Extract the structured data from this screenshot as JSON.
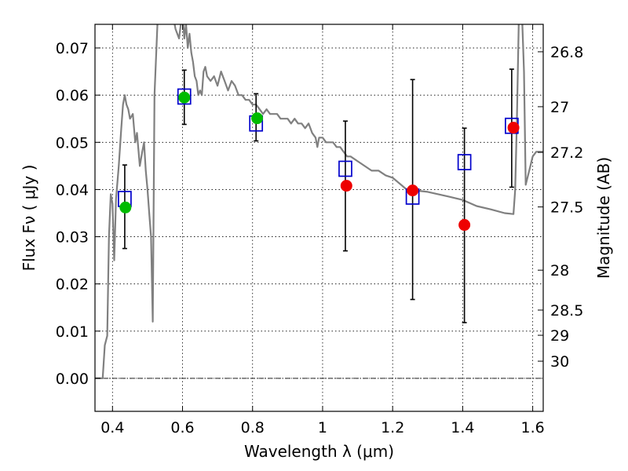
{
  "chart_data": {
    "type": "scatter",
    "xlabel": "Wavelength  λ (μm)",
    "ylabel": "Flux  Fν  ( μJy )",
    "y2label": "Magnitude (AB)",
    "xlim": [
      0.35,
      1.63
    ],
    "ylim": [
      -0.007,
      0.075
    ],
    "grid": true,
    "x_ticks": [
      {
        "value": 0.4,
        "label": "0.4"
      },
      {
        "value": 0.6,
        "label": "0.6"
      },
      {
        "value": 0.8,
        "label": "0.8"
      },
      {
        "value": 1.0,
        "label": "1"
      },
      {
        "value": 1.2,
        "label": "1.2"
      },
      {
        "value": 1.4,
        "label": "1.4"
      },
      {
        "value": 1.6,
        "label": "1.6"
      }
    ],
    "y_ticks": [
      {
        "value": 0.0,
        "label": "0.00"
      },
      {
        "value": 0.01,
        "label": "0.01"
      },
      {
        "value": 0.02,
        "label": "0.02"
      },
      {
        "value": 0.03,
        "label": "0.03"
      },
      {
        "value": 0.04,
        "label": "0.04"
      },
      {
        "value": 0.05,
        "label": "0.05"
      },
      {
        "value": 0.06,
        "label": "0.06"
      },
      {
        "value": 0.07,
        "label": "0.07"
      }
    ],
    "y2_ticks": [
      {
        "value": 26.8,
        "label": "26.8"
      },
      {
        "value": 27.0,
        "label": "27"
      },
      {
        "value": 27.2,
        "label": "27.2"
      },
      {
        "value": 27.5,
        "label": "27.5"
      },
      {
        "value": 28.0,
        "label": "28"
      },
      {
        "value": 28.5,
        "label": "28.5"
      },
      {
        "value": 29.0,
        "label": "29"
      },
      {
        "value": 30.0,
        "label": "30"
      }
    ],
    "zero_line": 0.0,
    "series": [
      {
        "kind": "line",
        "color": "#808080",
        "x": [
          0.35,
          0.372,
          0.378,
          0.385,
          0.39,
          0.395,
          0.4,
          0.405,
          0.41,
          0.418,
          0.425,
          0.43,
          0.435,
          0.44,
          0.445,
          0.45,
          0.458,
          0.465,
          0.47,
          0.478,
          0.485,
          0.49,
          0.495,
          0.5,
          0.505,
          0.51,
          0.515,
          0.52,
          0.53,
          0.55,
          0.575,
          0.58,
          0.59,
          0.6,
          0.605,
          0.61,
          0.615,
          0.62,
          0.625,
          0.63,
          0.635,
          0.64,
          0.645,
          0.65,
          0.655,
          0.66,
          0.665,
          0.67,
          0.68,
          0.69,
          0.7,
          0.71,
          0.72,
          0.73,
          0.74,
          0.75,
          0.76,
          0.77,
          0.78,
          0.79,
          0.8,
          0.81,
          0.82,
          0.83,
          0.84,
          0.85,
          0.86,
          0.87,
          0.88,
          0.89,
          0.9,
          0.91,
          0.92,
          0.93,
          0.94,
          0.95,
          0.96,
          0.97,
          0.98,
          0.985,
          0.99,
          1.0,
          1.01,
          1.02,
          1.03,
          1.04,
          1.05,
          1.06,
          1.07,
          1.08,
          1.1,
          1.12,
          1.14,
          1.16,
          1.18,
          1.2,
          1.24,
          1.3,
          1.36,
          1.4,
          1.44,
          1.48,
          1.52,
          1.545,
          1.55,
          1.555,
          1.56,
          1.565,
          1.57,
          1.575,
          1.58,
          1.59,
          1.6,
          1.61,
          1.62,
          1.63
        ],
        "y": [
          0.0,
          0.0,
          0.007,
          0.009,
          0.03,
          0.039,
          0.037,
          0.025,
          0.038,
          0.045,
          0.053,
          0.058,
          0.06,
          0.058,
          0.057,
          0.055,
          0.056,
          0.05,
          0.052,
          0.045,
          0.048,
          0.05,
          0.044,
          0.04,
          0.035,
          0.03,
          0.012,
          0.06,
          0.078,
          0.078,
          0.076,
          0.074,
          0.072,
          0.078,
          0.072,
          0.075,
          0.07,
          0.073,
          0.069,
          0.067,
          0.064,
          0.063,
          0.06,
          0.061,
          0.06,
          0.065,
          0.066,
          0.064,
          0.063,
          0.064,
          0.062,
          0.065,
          0.063,
          0.061,
          0.063,
          0.062,
          0.06,
          0.06,
          0.059,
          0.059,
          0.058,
          0.058,
          0.057,
          0.056,
          0.057,
          0.056,
          0.056,
          0.056,
          0.055,
          0.055,
          0.055,
          0.054,
          0.055,
          0.054,
          0.054,
          0.053,
          0.054,
          0.052,
          0.051,
          0.049,
          0.051,
          0.051,
          0.05,
          0.05,
          0.05,
          0.049,
          0.049,
          0.048,
          0.047,
          0.047,
          0.046,
          0.045,
          0.044,
          0.044,
          0.043,
          0.0425,
          0.04,
          0.0395,
          0.0385,
          0.0378,
          0.0365,
          0.0358,
          0.035,
          0.0348,
          0.04,
          0.055,
          0.075,
          0.078,
          0.076,
          0.065,
          0.041,
          0.044,
          0.047,
          0.048,
          0.048,
          0.048
        ]
      },
      {
        "kind": "errorbar",
        "color": "#000000",
        "points": [
          {
            "x": 0.435,
            "low": 0.0275,
            "high": 0.0452
          },
          {
            "x": 0.605,
            "low": 0.0538,
            "high": 0.0653
          },
          {
            "x": 0.81,
            "low": 0.0503,
            "high": 0.0603
          },
          {
            "x": 1.065,
            "low": 0.027,
            "high": 0.0545
          },
          {
            "x": 1.257,
            "low": 0.0167,
            "high": 0.0633
          },
          {
            "x": 1.405,
            "low": 0.0118,
            "high": 0.053
          },
          {
            "x": 1.54,
            "low": 0.0405,
            "high": 0.0655
          }
        ]
      },
      {
        "kind": "markers",
        "marker": "square",
        "color": "#0000cc",
        "x": [
          0.435,
          0.605,
          0.81,
          1.065,
          1.257,
          1.405,
          1.54
        ],
        "y": [
          0.038,
          0.0597,
          0.054,
          0.0444,
          0.0385,
          0.0458,
          0.0535
        ]
      },
      {
        "kind": "markers",
        "marker": "circle",
        "color": "#00bb00",
        "x": [
          0.437,
          0.605,
          0.813
        ],
        "y": [
          0.0362,
          0.0595,
          0.0551
        ]
      },
      {
        "kind": "markers",
        "marker": "circle",
        "color": "#ee0000",
        "x": [
          1.068,
          1.257,
          1.405,
          1.545
        ],
        "y": [
          0.0408,
          0.0398,
          0.0325,
          0.0531
        ]
      }
    ]
  }
}
